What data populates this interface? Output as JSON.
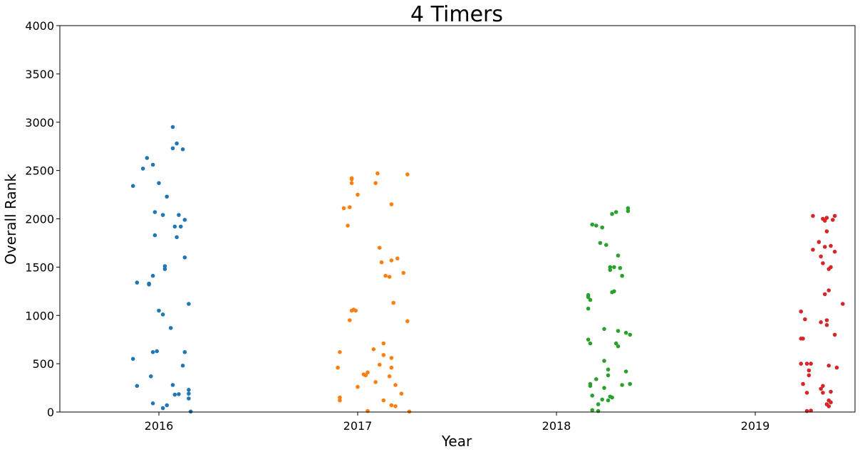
{
  "chart_data": {
    "type": "scatter",
    "title": "4 Timers",
    "xlabel": "Year",
    "ylabel": "Overall Rank",
    "categories": [
      "2016",
      "2017",
      "2018",
      "2019"
    ],
    "ylim": [
      0,
      4000
    ],
    "yticks": [
      0,
      500,
      1000,
      1500,
      2000,
      2500,
      3000,
      3500,
      4000
    ],
    "grid": false,
    "series": [
      {
        "category": "2016",
        "color": "#1f77b4",
        "points": [
          {
            "x": 0.07,
            "y": 2950
          },
          {
            "x": 0.09,
            "y": 2780
          },
          {
            "x": 0.07,
            "y": 2730
          },
          {
            "x": 0.12,
            "y": 2720
          },
          {
            "x": -0.06,
            "y": 2630
          },
          {
            "x": -0.03,
            "y": 2560
          },
          {
            "x": -0.08,
            "y": 2520
          },
          {
            "x": -0.13,
            "y": 2340
          },
          {
            "x": 0.0,
            "y": 2370
          },
          {
            "x": 0.04,
            "y": 2230
          },
          {
            "x": -0.02,
            "y": 2070
          },
          {
            "x": 0.02,
            "y": 2040
          },
          {
            "x": 0.1,
            "y": 2040
          },
          {
            "x": 0.13,
            "y": 1990
          },
          {
            "x": 0.08,
            "y": 1920
          },
          {
            "x": 0.11,
            "y": 1920
          },
          {
            "x": -0.02,
            "y": 1830
          },
          {
            "x": 0.09,
            "y": 1810
          },
          {
            "x": 0.13,
            "y": 1600
          },
          {
            "x": 0.03,
            "y": 1510
          },
          {
            "x": 0.03,
            "y": 1480
          },
          {
            "x": -0.03,
            "y": 1410
          },
          {
            "x": -0.11,
            "y": 1340
          },
          {
            "x": -0.05,
            "y": 1330
          },
          {
            "x": -0.05,
            "y": 1320
          },
          {
            "x": 0.15,
            "y": 1120
          },
          {
            "x": 0.0,
            "y": 1050
          },
          {
            "x": 0.02,
            "y": 1010
          },
          {
            "x": 0.06,
            "y": 870
          },
          {
            "x": -0.03,
            "y": 620
          },
          {
            "x": -0.01,
            "y": 630
          },
          {
            "x": 0.13,
            "y": 620
          },
          {
            "x": -0.13,
            "y": 550
          },
          {
            "x": 0.12,
            "y": 480
          },
          {
            "x": -0.04,
            "y": 370
          },
          {
            "x": 0.07,
            "y": 280
          },
          {
            "x": -0.11,
            "y": 270
          },
          {
            "x": 0.15,
            "y": 230
          },
          {
            "x": 0.15,
            "y": 190
          },
          {
            "x": 0.08,
            "y": 180
          },
          {
            "x": 0.1,
            "y": 185
          },
          {
            "x": 0.15,
            "y": 140
          },
          {
            "x": -0.03,
            "y": 90
          },
          {
            "x": 0.04,
            "y": 70
          },
          {
            "x": 0.02,
            "y": 40
          },
          {
            "x": 0.16,
            "y": 5
          }
        ]
      },
      {
        "category": "2017",
        "color": "#ff7f0e",
        "points": [
          {
            "x": -0.03,
            "y": 2420
          },
          {
            "x": -0.03,
            "y": 2410
          },
          {
            "x": 0.1,
            "y": 2470
          },
          {
            "x": 0.25,
            "y": 2460
          },
          {
            "x": -0.03,
            "y": 2370
          },
          {
            "x": 0.09,
            "y": 2370
          },
          {
            "x": 0.0,
            "y": 2250
          },
          {
            "x": 0.17,
            "y": 2150
          },
          {
            "x": -0.07,
            "y": 2110
          },
          {
            "x": -0.04,
            "y": 2120
          },
          {
            "x": -0.05,
            "y": 1930
          },
          {
            "x": 0.11,
            "y": 1700
          },
          {
            "x": 0.2,
            "y": 1590
          },
          {
            "x": 0.17,
            "y": 1570
          },
          {
            "x": 0.12,
            "y": 1550
          },
          {
            "x": 0.23,
            "y": 1440
          },
          {
            "x": 0.14,
            "y": 1410
          },
          {
            "x": 0.16,
            "y": 1400
          },
          {
            "x": 0.18,
            "y": 1130
          },
          {
            "x": -0.02,
            "y": 1060
          },
          {
            "x": -0.01,
            "y": 1050
          },
          {
            "x": -0.03,
            "y": 1050
          },
          {
            "x": -0.04,
            "y": 950
          },
          {
            "x": 0.25,
            "y": 940
          },
          {
            "x": 0.13,
            "y": 710
          },
          {
            "x": 0.08,
            "y": 650
          },
          {
            "x": -0.09,
            "y": 620
          },
          {
            "x": 0.13,
            "y": 590
          },
          {
            "x": 0.17,
            "y": 560
          },
          {
            "x": 0.11,
            "y": 490
          },
          {
            "x": -0.1,
            "y": 460
          },
          {
            "x": 0.17,
            "y": 460
          },
          {
            "x": 0.05,
            "y": 410
          },
          {
            "x": 0.03,
            "y": 390
          },
          {
            "x": 0.04,
            "y": 380
          },
          {
            "x": 0.16,
            "y": 370
          },
          {
            "x": 0.09,
            "y": 310
          },
          {
            "x": 0.19,
            "y": 280
          },
          {
            "x": 0.0,
            "y": 260
          },
          {
            "x": 0.22,
            "y": 190
          },
          {
            "x": -0.09,
            "y": 150
          },
          {
            "x": -0.09,
            "y": 120
          },
          {
            "x": 0.13,
            "y": 120
          },
          {
            "x": 0.17,
            "y": 70
          },
          {
            "x": 0.19,
            "y": 60
          },
          {
            "x": 0.05,
            "y": 10
          },
          {
            "x": 0.26,
            "y": 5
          }
        ]
      },
      {
        "category": "2018",
        "color": "#2ca02c",
        "points": [
          {
            "x": 0.36,
            "y": 2110
          },
          {
            "x": 0.36,
            "y": 2080
          },
          {
            "x": 0.3,
            "y": 2070
          },
          {
            "x": 0.28,
            "y": 2050
          },
          {
            "x": 0.18,
            "y": 1940
          },
          {
            "x": 0.2,
            "y": 1930
          },
          {
            "x": 0.23,
            "y": 1910
          },
          {
            "x": 0.22,
            "y": 1750
          },
          {
            "x": 0.25,
            "y": 1730
          },
          {
            "x": 0.31,
            "y": 1620
          },
          {
            "x": 0.29,
            "y": 1500
          },
          {
            "x": 0.27,
            "y": 1500
          },
          {
            "x": 0.32,
            "y": 1490
          },
          {
            "x": 0.27,
            "y": 1470
          },
          {
            "x": 0.33,
            "y": 1410
          },
          {
            "x": 0.29,
            "y": 1250
          },
          {
            "x": 0.28,
            "y": 1240
          },
          {
            "x": 0.16,
            "y": 1210
          },
          {
            "x": 0.16,
            "y": 1190
          },
          {
            "x": 0.17,
            "y": 1160
          },
          {
            "x": 0.16,
            "y": 1070
          },
          {
            "x": 0.24,
            "y": 860
          },
          {
            "x": 0.31,
            "y": 840
          },
          {
            "x": 0.35,
            "y": 820
          },
          {
            "x": 0.37,
            "y": 800
          },
          {
            "x": 0.16,
            "y": 750
          },
          {
            "x": 0.17,
            "y": 710
          },
          {
            "x": 0.3,
            "y": 710
          },
          {
            "x": 0.31,
            "y": 680
          },
          {
            "x": 0.24,
            "y": 530
          },
          {
            "x": 0.26,
            "y": 440
          },
          {
            "x": 0.35,
            "y": 420
          },
          {
            "x": 0.26,
            "y": 380
          },
          {
            "x": 0.2,
            "y": 340
          },
          {
            "x": 0.37,
            "y": 290
          },
          {
            "x": 0.33,
            "y": 280
          },
          {
            "x": 0.17,
            "y": 290
          },
          {
            "x": 0.17,
            "y": 270
          },
          {
            "x": 0.24,
            "y": 250
          },
          {
            "x": 0.18,
            "y": 170
          },
          {
            "x": 0.27,
            "y": 160
          },
          {
            "x": 0.28,
            "y": 150
          },
          {
            "x": 0.23,
            "y": 130
          },
          {
            "x": 0.26,
            "y": 120
          },
          {
            "x": 0.21,
            "y": 80
          },
          {
            "x": 0.18,
            "y": 20
          },
          {
            "x": 0.21,
            "y": 10
          }
        ]
      },
      {
        "category": "2019",
        "color": "#d62728",
        "points": [
          {
            "x": 0.29,
            "y": 2030
          },
          {
            "x": 0.4,
            "y": 2030
          },
          {
            "x": 0.36,
            "y": 2010
          },
          {
            "x": 0.34,
            "y": 2000
          },
          {
            "x": 0.35,
            "y": 1980
          },
          {
            "x": 0.39,
            "y": 1990
          },
          {
            "x": 0.36,
            "y": 1870
          },
          {
            "x": 0.32,
            "y": 1760
          },
          {
            "x": 0.35,
            "y": 1710
          },
          {
            "x": 0.38,
            "y": 1720
          },
          {
            "x": 0.29,
            "y": 1680
          },
          {
            "x": 0.4,
            "y": 1660
          },
          {
            "x": 0.33,
            "y": 1610
          },
          {
            "x": 0.34,
            "y": 1540
          },
          {
            "x": 0.38,
            "y": 1500
          },
          {
            "x": 0.37,
            "y": 1480
          },
          {
            "x": 0.37,
            "y": 1260
          },
          {
            "x": 0.35,
            "y": 1220
          },
          {
            "x": 0.44,
            "y": 1120
          },
          {
            "x": 0.23,
            "y": 1040
          },
          {
            "x": 0.25,
            "y": 960
          },
          {
            "x": 0.36,
            "y": 950
          },
          {
            "x": 0.33,
            "y": 930
          },
          {
            "x": 0.36,
            "y": 900
          },
          {
            "x": 0.4,
            "y": 800
          },
          {
            "x": 0.23,
            "y": 760
          },
          {
            "x": 0.24,
            "y": 760
          },
          {
            "x": 0.23,
            "y": 500
          },
          {
            "x": 0.26,
            "y": 500
          },
          {
            "x": 0.28,
            "y": 500
          },
          {
            "x": 0.37,
            "y": 480
          },
          {
            "x": 0.41,
            "y": 460
          },
          {
            "x": 0.27,
            "y": 430
          },
          {
            "x": 0.27,
            "y": 380
          },
          {
            "x": 0.24,
            "y": 290
          },
          {
            "x": 0.34,
            "y": 270
          },
          {
            "x": 0.33,
            "y": 240
          },
          {
            "x": 0.38,
            "y": 210
          },
          {
            "x": 0.26,
            "y": 200
          },
          {
            "x": 0.34,
            "y": 200
          },
          {
            "x": 0.37,
            "y": 120
          },
          {
            "x": 0.38,
            "y": 100
          },
          {
            "x": 0.36,
            "y": 80
          },
          {
            "x": 0.37,
            "y": 60
          },
          {
            "x": 0.26,
            "y": 10
          },
          {
            "x": 0.28,
            "y": 15
          }
        ]
      }
    ]
  }
}
